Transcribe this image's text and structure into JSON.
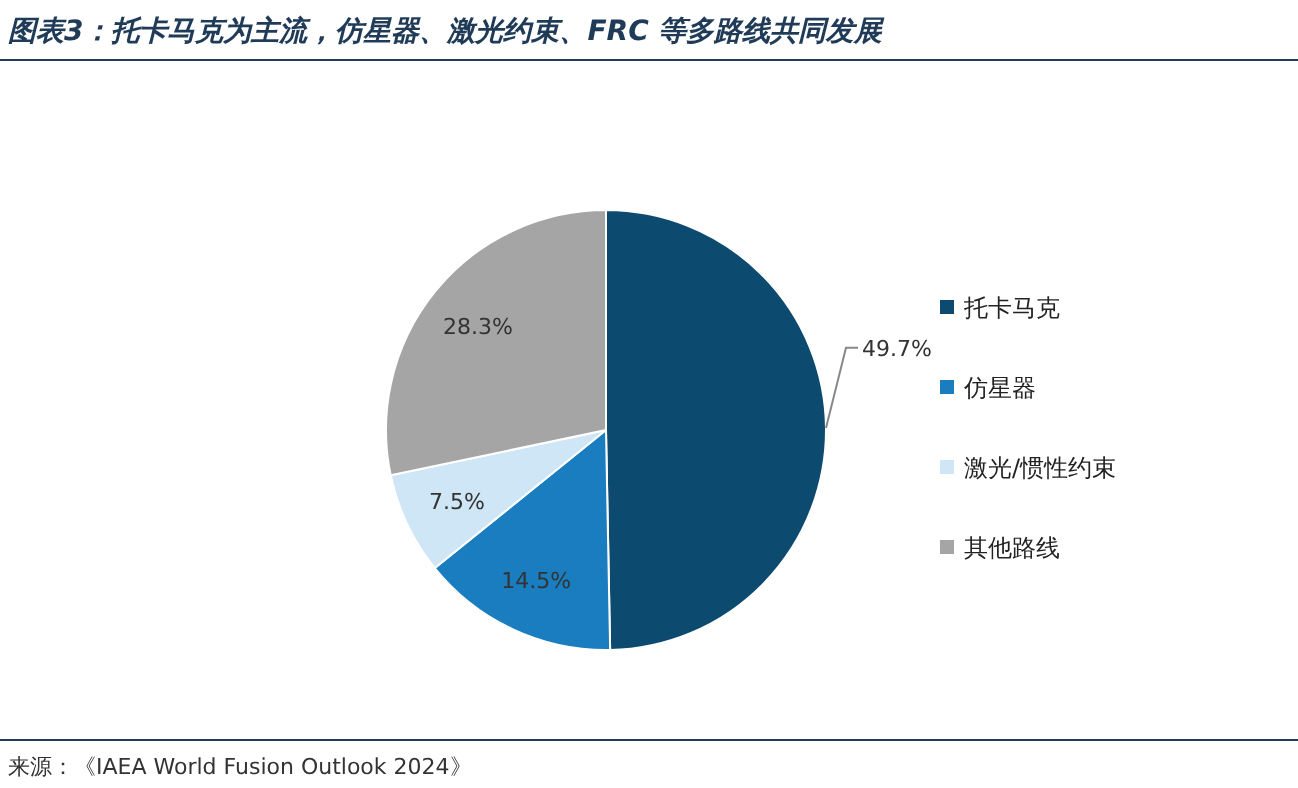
{
  "chart_data": {
    "type": "pie",
    "title": "图表3：托卡马克为主流，仿星器、激光约束、FRC 等多路线共同发展",
    "categories": [
      "托卡马克",
      "仿星器",
      "激光/惯性约束",
      "其他路线"
    ],
    "values": [
      49.7,
      14.5,
      7.5,
      28.3
    ],
    "colors": [
      "#0c4a70",
      "#1a7dbf",
      "#cfe6f6",
      "#a5a5a5"
    ],
    "value_labels": [
      "49.7%",
      "14.5%",
      "7.5%",
      "28.3%"
    ],
    "legend": "right",
    "annotations": [
      "来源：《IAEA World Fusion Outlook 2024》"
    ]
  }
}
